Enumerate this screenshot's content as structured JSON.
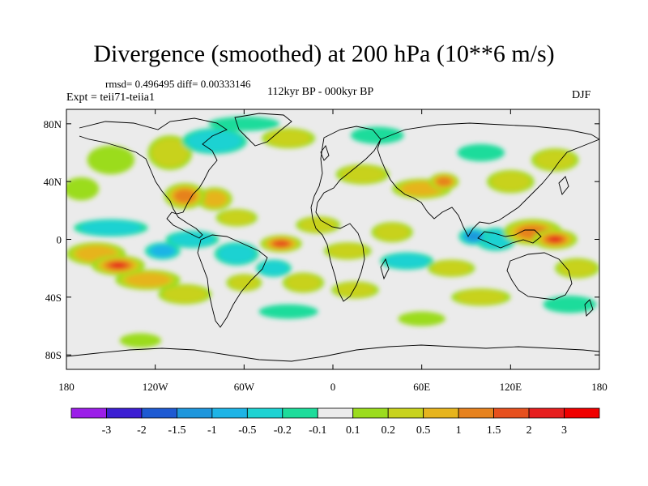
{
  "header": {
    "title": "Divergence (smoothed) at 200 hPa (10**6 m/s)",
    "stats": "rmsd= 0.496495 diff= 0.00333146",
    "experiment": "Expt = teii71-teiia1",
    "period": "112kyr BP - 000kyr BP",
    "season": "DJF"
  },
  "map": {
    "projection": "cylindrical-equidistant",
    "lon_range": [
      -180,
      180
    ],
    "lat_range": [
      -90,
      90
    ],
    "x_ticks": [
      {
        "value": -180,
        "label": "180"
      },
      {
        "value": -120,
        "label": "120W"
      },
      {
        "value": -60,
        "label": "60W"
      },
      {
        "value": 0,
        "label": "0"
      },
      {
        "value": 60,
        "label": "60E"
      },
      {
        "value": 120,
        "label": "120E"
      },
      {
        "value": 180,
        "label": "180"
      }
    ],
    "y_ticks": [
      {
        "value": 80,
        "label": "80N"
      },
      {
        "value": 40,
        "label": "40N"
      },
      {
        "value": 0,
        "label": "0"
      },
      {
        "value": -40,
        "label": "40S"
      },
      {
        "value": -80,
        "label": "80S"
      }
    ],
    "background_color": "#ebebeb",
    "coastline_color": "#000000"
  },
  "colorbar": {
    "labels": [
      "-3",
      "-2",
      "-1.5",
      "-1",
      "-0.5",
      "-0.2",
      "-0.1",
      "0.1",
      "0.2",
      "0.5",
      "1",
      "1.5",
      "2",
      "3"
    ],
    "colors": [
      "#9b1ee8",
      "#3c1ed2",
      "#1e5ad2",
      "#1e96dc",
      "#1eb4e6",
      "#1ed2d2",
      "#1edc9b",
      "#ebebeb",
      "#9bdc1e",
      "#c8d21e",
      "#e6b41e",
      "#e6821e",
      "#e6501e",
      "#e61e1e",
      "#f00000"
    ]
  },
  "field_blobs": [
    {
      "lon": -145,
      "lat": -18,
      "rx": 18,
      "ry": 7,
      "value": 2.5
    },
    {
      "lon": -160,
      "lat": -10,
      "rx": 20,
      "ry": 8,
      "value": 1.2
    },
    {
      "lon": -125,
      "lat": -28,
      "rx": 22,
      "ry": 7,
      "value": 1.0
    },
    {
      "lon": -100,
      "lat": -38,
      "rx": 18,
      "ry": 7,
      "value": 0.6
    },
    {
      "lon": -150,
      "lat": 8,
      "rx": 25,
      "ry": 6,
      "value": -0.7
    },
    {
      "lon": -115,
      "lat": -8,
      "rx": 12,
      "ry": 6,
      "value": -1.0
    },
    {
      "lon": -95,
      "lat": 0,
      "rx": 18,
      "ry": 6,
      "value": -0.6
    },
    {
      "lon": -100,
      "lat": 30,
      "rx": 14,
      "ry": 9,
      "value": 1.5
    },
    {
      "lon": -80,
      "lat": 28,
      "rx": 12,
      "ry": 8,
      "value": 0.8
    },
    {
      "lon": -110,
      "lat": 60,
      "rx": 15,
      "ry": 12,
      "value": 0.4
    },
    {
      "lon": -150,
      "lat": 55,
      "rx": 16,
      "ry": 10,
      "value": 0.3
    },
    {
      "lon": -170,
      "lat": 35,
      "rx": 12,
      "ry": 8,
      "value": 0.3
    },
    {
      "lon": -80,
      "lat": 68,
      "rx": 22,
      "ry": 9,
      "value": -0.5
    },
    {
      "lon": -60,
      "lat": 80,
      "rx": 24,
      "ry": 5,
      "value": -0.3
    },
    {
      "lon": -30,
      "lat": 70,
      "rx": 18,
      "ry": 7,
      "value": 0.4
    },
    {
      "lon": -65,
      "lat": 15,
      "rx": 14,
      "ry": 6,
      "value": 0.4
    },
    {
      "lon": -35,
      "lat": -3,
      "rx": 14,
      "ry": 6,
      "value": 2.3
    },
    {
      "lon": -65,
      "lat": -10,
      "rx": 15,
      "ry": 8,
      "value": -0.6
    },
    {
      "lon": -60,
      "lat": -30,
      "rx": 12,
      "ry": 6,
      "value": 0.4
    },
    {
      "lon": -40,
      "lat": -20,
      "rx": 12,
      "ry": 6,
      "value": -0.6
    },
    {
      "lon": -20,
      "lat": -30,
      "rx": 14,
      "ry": 7,
      "value": 0.5
    },
    {
      "lon": -10,
      "lat": 10,
      "rx": 15,
      "ry": 6,
      "value": 0.4
    },
    {
      "lon": 10,
      "lat": -8,
      "rx": 16,
      "ry": 6,
      "value": 0.6
    },
    {
      "lon": 15,
      "lat": -35,
      "rx": 16,
      "ry": 6,
      "value": 0.5
    },
    {
      "lon": 20,
      "lat": 45,
      "rx": 18,
      "ry": 7,
      "value": 0.4
    },
    {
      "lon": 60,
      "lat": 35,
      "rx": 20,
      "ry": 7,
      "value": 1.0
    },
    {
      "lon": 75,
      "lat": 40,
      "rx": 10,
      "ry": 6,
      "value": 1.5
    },
    {
      "lon": 40,
      "lat": 5,
      "rx": 14,
      "ry": 7,
      "value": 0.4
    },
    {
      "lon": 50,
      "lat": -15,
      "rx": 18,
      "ry": 6,
      "value": -0.6
    },
    {
      "lon": 80,
      "lat": -20,
      "rx": 16,
      "ry": 6,
      "value": 0.6
    },
    {
      "lon": 95,
      "lat": 2,
      "rx": 10,
      "ry": 6,
      "value": -1.5
    },
    {
      "lon": 110,
      "lat": 0,
      "rx": 14,
      "ry": 8,
      "value": -0.7
    },
    {
      "lon": 135,
      "lat": 5,
      "rx": 20,
      "ry": 9,
      "value": 1.5
    },
    {
      "lon": 150,
      "lat": 0,
      "rx": 15,
      "ry": 7,
      "value": 2.5
    },
    {
      "lon": 165,
      "lat": -20,
      "rx": 15,
      "ry": 7,
      "value": 0.6
    },
    {
      "lon": 120,
      "lat": 40,
      "rx": 16,
      "ry": 8,
      "value": 0.6
    },
    {
      "lon": 150,
      "lat": 55,
      "rx": 16,
      "ry": 8,
      "value": 0.4
    },
    {
      "lon": 100,
      "lat": 60,
      "rx": 16,
      "ry": 6,
      "value": -0.3
    },
    {
      "lon": 30,
      "lat": 72,
      "rx": 18,
      "ry": 6,
      "value": -0.3
    },
    {
      "lon": 100,
      "lat": -40,
      "rx": 20,
      "ry": 6,
      "value": 0.4
    },
    {
      "lon": -30,
      "lat": -50,
      "rx": 20,
      "ry": 5,
      "value": -0.3
    },
    {
      "lon": 160,
      "lat": -45,
      "rx": 18,
      "ry": 6,
      "value": -0.3
    },
    {
      "lon": -130,
      "lat": -70,
      "rx": 14,
      "ry": 5,
      "value": 0.3
    },
    {
      "lon": 60,
      "lat": -55,
      "rx": 16,
      "ry": 5,
      "value": 0.3
    }
  ]
}
